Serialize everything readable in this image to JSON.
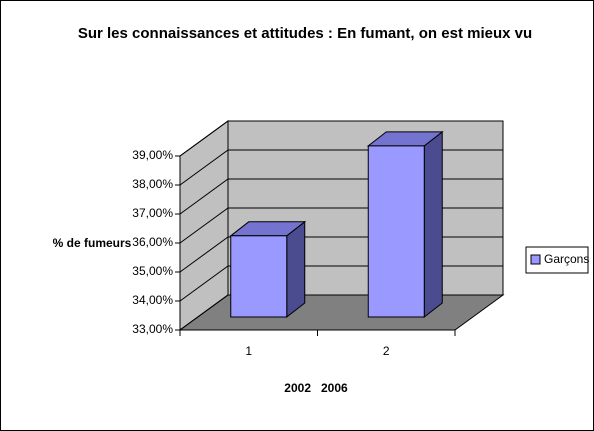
{
  "chart_data": {
    "type": "bar3d",
    "title": "Sur les connaissances et attitudes : En fumant, on est mieux vu",
    "y_label": "% de fumeurs",
    "x_label": "2002   2006",
    "categories": [
      "1",
      "2"
    ],
    "series": [
      {
        "name": "Garçons",
        "color": "#9999ff",
        "values": [
          35.8,
          38.9
        ]
      }
    ],
    "ylim": [
      33,
      39
    ],
    "yticks": [
      {
        "value": 33,
        "label": "33,00%"
      },
      {
        "value": 34,
        "label": "34,00%"
      },
      {
        "value": 35,
        "label": "35,00%"
      },
      {
        "value": 36,
        "label": "36,00%"
      },
      {
        "value": 37,
        "label": "37,00%"
      },
      {
        "value": 38,
        "label": "38,00%"
      },
      {
        "value": 39,
        "label": "39,00%"
      }
    ],
    "grid": true
  }
}
